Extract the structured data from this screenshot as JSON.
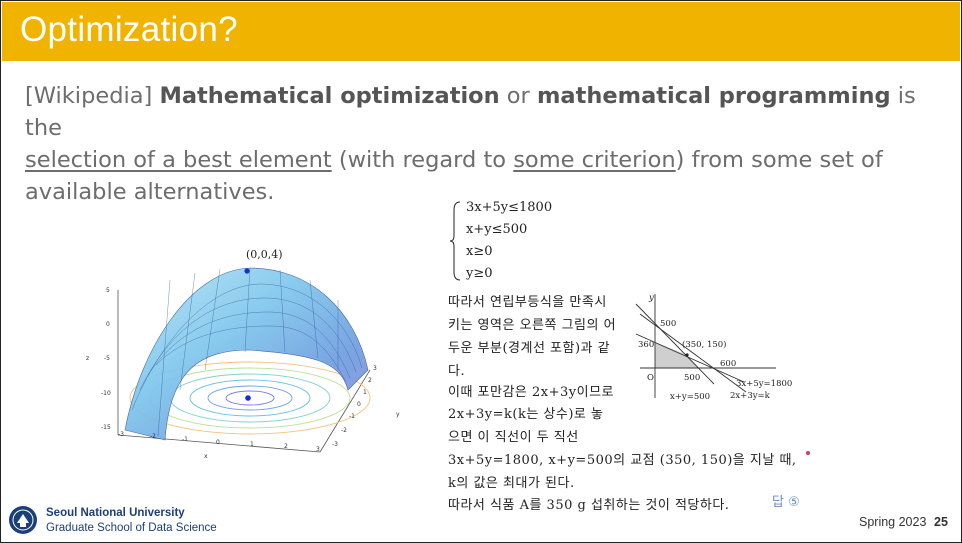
{
  "slide": {
    "title": "Optimization?",
    "def_source": "[Wikipedia]",
    "def_term1": "Mathematical optimization",
    "def_or": " or ",
    "def_term2": "mathematical programming",
    "def_is": " is the",
    "def_underline1": "selection of a best element",
    "def_mid": " (with regard to ",
    "def_underline2": "some criterion",
    "def_end": ") from some set of available alternatives."
  },
  "plot3d": {
    "peak_label": "(0,0,4)",
    "z_ticks": [
      "5",
      "0",
      "-5",
      "-10",
      "-15"
    ],
    "x_ticks": [
      "-3",
      "-2",
      "-1",
      "0",
      "1",
      "2",
      "3"
    ],
    "y_ticks": [
      "3",
      "2",
      "1",
      "0",
      "-1",
      "-2",
      "-3"
    ],
    "x_axis": "x",
    "y_axis": "y",
    "z_axis": "z"
  },
  "korean_text": {
    "ineq1": "3x+5y≤1800",
    "ineq2": "x+y≤500",
    "ineq3": "x≥0",
    "ineq4": "y≥0",
    "line1": "따라서 연립부등식을 만족시",
    "line2": "키는 영역은 오른쪽 그림의 어",
    "line3": "두운 부분(경계선 포함)과 같",
    "line4": "다.",
    "line5": "이때 포만감은 2x+3y이므로",
    "line6": "2x+3y=k(k는 상수)로 놓",
    "line7": "으면 이 직선이 두 직선",
    "line8": "3x+5y=1800, x+y=500의 교점 (350, 150)을 지날 때,",
    "line9": "k의 값은 최대가 된다.",
    "line10": "따라서 식품 A를 350 g 섭취하는 것이 적당하다."
  },
  "lp_graph": {
    "y_axis": "y",
    "x_axis": "x",
    "origin": "O",
    "y500": "500",
    "y360": "360",
    "point": "(350, 150)",
    "x600": "600",
    "x500": "500",
    "line_a": "3x+5y=1800",
    "line_b": "x+y=500",
    "line_c": "2x+3y=k"
  },
  "answer": "답 ⑤",
  "footer": {
    "university": "Seoul National University",
    "school": "Graduate School of Data Science",
    "term": "Spring 2023",
    "page": "25"
  },
  "colors": {
    "title_bar": "#f0b400",
    "body_text": "#6d6d6d",
    "footer_blue": "#1c3f7a"
  }
}
